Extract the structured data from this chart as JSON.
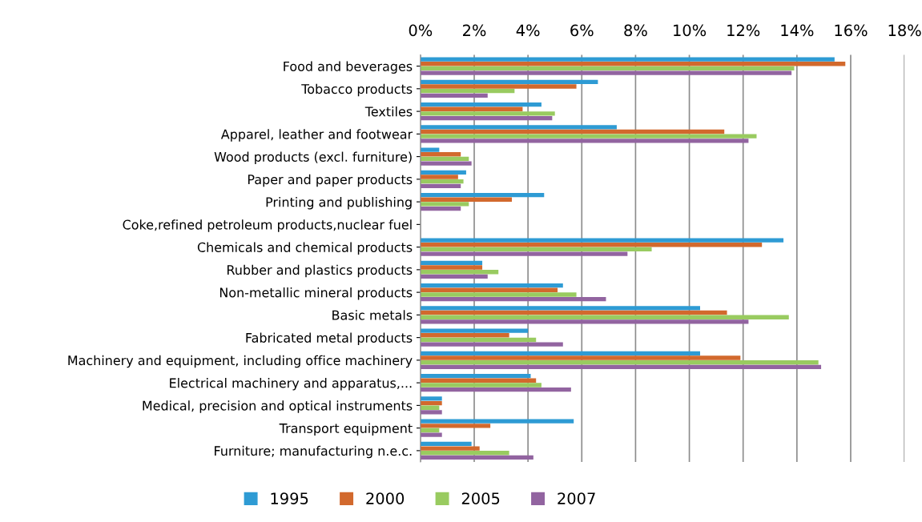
{
  "chart_data": {
    "type": "bar",
    "orientation": "horizontal",
    "categories": [
      "Food and beverages",
      "Tobacco products",
      "Textiles",
      "Apparel, leather and footwear",
      "Wood products (excl. furniture)",
      "Paper and paper products",
      "Printing and publishing",
      "Coke,refined petroleum products,nuclear fuel",
      "Chemicals and chemical products",
      "Rubber and plastics products",
      "Non-metallic mineral products",
      "Basic metals",
      "Fabricated metal products",
      "Machinery and equipment, including office machinery",
      "Electrical machinery and apparatus,...",
      "Medical, precision and optical instruments",
      "Transport equipment",
      "Furniture; manufacturing n.e.c."
    ],
    "series": [
      {
        "name": "1995",
        "color": "#2e9bd4",
        "values": [
          15.4,
          6.6,
          4.5,
          7.3,
          0.7,
          1.7,
          4.6,
          null,
          13.5,
          2.3,
          5.3,
          10.4,
          4.0,
          10.4,
          4.1,
          0.8,
          5.7,
          1.9
        ]
      },
      {
        "name": "2000",
        "color": "#d2692d",
        "values": [
          15.8,
          5.8,
          3.8,
          11.3,
          1.5,
          1.4,
          3.4,
          null,
          12.7,
          2.3,
          5.1,
          11.4,
          3.3,
          11.9,
          4.3,
          0.8,
          2.6,
          2.2
        ]
      },
      {
        "name": "2005",
        "color": "#99cb60",
        "values": [
          13.9,
          3.5,
          5.0,
          12.5,
          1.8,
          1.6,
          1.8,
          null,
          8.6,
          2.9,
          5.8,
          13.7,
          4.3,
          14.8,
          4.5,
          0.7,
          0.7,
          3.3
        ]
      },
      {
        "name": "2007",
        "color": "#9264a0",
        "values": [
          13.8,
          2.5,
          4.9,
          12.2,
          1.9,
          1.5,
          1.5,
          null,
          7.7,
          2.5,
          6.9,
          12.2,
          5.3,
          14.9,
          5.6,
          0.8,
          0.8,
          4.2
        ]
      }
    ],
    "xlim": [
      0,
      18
    ],
    "xticks": [
      {
        "value": 0,
        "label": "0%"
      },
      {
        "value": 2,
        "label": "2%"
      },
      {
        "value": 4,
        "label": "4%"
      },
      {
        "value": 6,
        "label": "6%"
      },
      {
        "value": 8,
        "label": "8%"
      },
      {
        "value": 10,
        "label": "10%"
      },
      {
        "value": 12,
        "label": "12%"
      },
      {
        "value": 14,
        "label": "14%"
      },
      {
        "value": 16,
        "label": "16%"
      },
      {
        "value": 18,
        "label": "18%"
      }
    ],
    "grid": "x",
    "legend": "bottom"
  }
}
